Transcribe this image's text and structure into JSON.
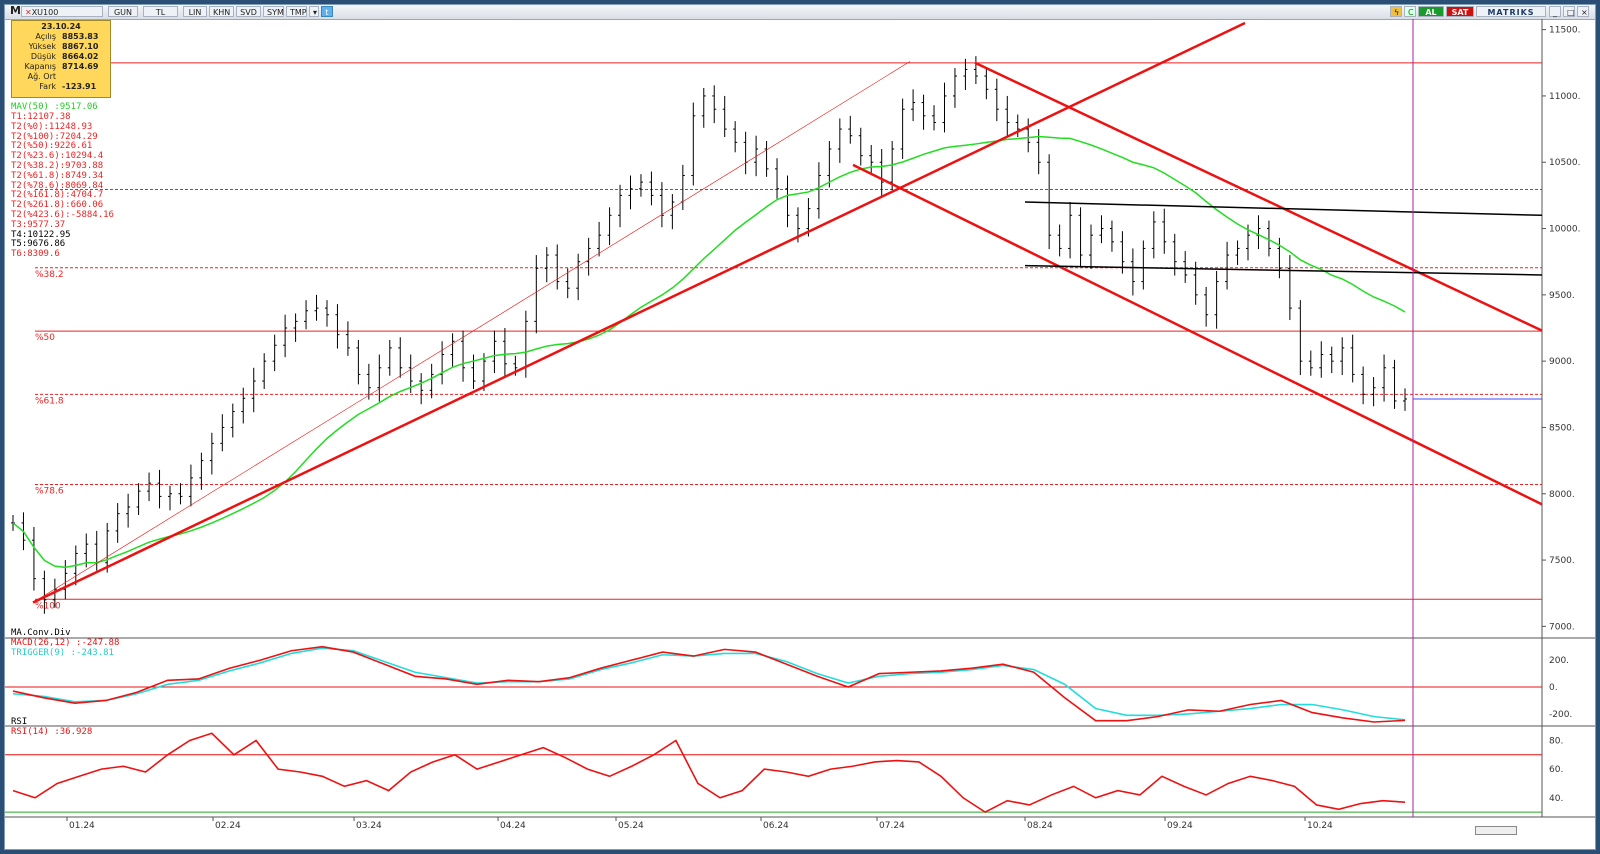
{
  "toolbar": {
    "logo": "M",
    "symbol": "XU100",
    "buttons": [
      "GUN",
      "TL",
      "LIN",
      "KHN",
      "SVD",
      "SYM",
      "TMP"
    ],
    "al": "AL",
    "sat": "SAT",
    "brand": "MATRIKS"
  },
  "ohlc": {
    "date": "23.10.24",
    "rows": [
      {
        "label": "Açılış",
        "value": "8853.83"
      },
      {
        "label": "Yüksek",
        "value": "8867.10"
      },
      {
        "label": "Düşük",
        "value": "8664.02"
      },
      {
        "label": "Kapanış",
        "value": "8714.69"
      },
      {
        "label": "Ağ. Ort",
        "value": ""
      },
      {
        "label": "Fark",
        "value": "-123.91"
      }
    ]
  },
  "price_indicators": {
    "mav": "MAV(50)         :9517.06",
    "levels": [
      "T1:12107.38",
      "T2(%0):11248.93",
      "T2(%100):7204.29",
      "T2(%50):9226.61",
      "T2(%23.6):10294.4",
      "T2(%38.2):9703.88",
      "T2(%61.8):8749.34",
      "T2(%78.6):8069.84",
      "T2(%161.8):4704.7",
      "T2(%261.8):660.06",
      "T2(%423.6):-5884.16",
      "T3:9577.37"
    ],
    "t4": "T4:10122.95",
    "t5": "T5:9676.86",
    "t6": "T6:8309.6"
  },
  "macd_labels": {
    "title": "MA.Conv.Div",
    "macd": "MACD(26,12)   :-247.88",
    "trigger": "TRIGGER(9)    :-243.81"
  },
  "rsi_labels": {
    "title": "RSI",
    "rsi": "RSI(14)      :36.928"
  },
  "colors": {
    "price": "#000000",
    "ma": "#22dd22",
    "trend": "#ee1111",
    "fib": "#ee2222",
    "macd": "#ee1111",
    "trigger": "#22dddd",
    "rsi": "#ee1111",
    "cursor": "#aa22aa"
  },
  "chart_data": [
    {
      "type": "ohlc",
      "symbol": "XU100",
      "x_ticks": [
        "01.24",
        "02.24",
        "03.24",
        "04.24",
        "05.24",
        "06.24",
        "07.24",
        "08.24",
        "09.24",
        "10.24"
      ],
      "y_ticks": [
        11500,
        11000,
        10500,
        10000,
        9500,
        9000,
        8500,
        8000,
        7500,
        7000
      ],
      "ylim": [
        6950,
        11550
      ],
      "fib_labels": [
        {
          "label": "%38.2",
          "value": 9703.88
        },
        {
          "label": "%50",
          "value": 9226.61
        },
        {
          "label": "%61.8",
          "value": 8749.34
        },
        {
          "label": "%78.6",
          "value": 8069.84
        },
        {
          "label": "%100",
          "value": 7204.29
        }
      ],
      "horizontal_lines": [
        11248.93,
        10294.4,
        9703.88,
        9226.61,
        8749.34,
        8069.84,
        7204.29
      ],
      "close_path": [
        7780,
        7650,
        7360,
        7200,
        7280,
        7400,
        7550,
        7620,
        7480,
        7720,
        7850,
        7900,
        8020,
        8080,
        7980,
        8000,
        7980,
        8120,
        8250,
        8380,
        8500,
        8620,
        8720,
        8850,
        9000,
        9120,
        9250,
        9300,
        9380,
        9400,
        9350,
        9200,
        9100,
        8900,
        8800,
        8950,
        9100,
        8950,
        8850,
        8780,
        8900,
        9050,
        9150,
        8950,
        8850,
        9000,
        9150,
        8980,
        8950,
        9300,
        9700,
        9800,
        9600,
        9550,
        9750,
        9850,
        9950,
        10100,
        10250,
        10300,
        10350,
        10250,
        10100,
        10200,
        10400,
        10850,
        11000,
        10900,
        10750,
        10650,
        10500,
        10600,
        10450,
        10300,
        10100,
        10000,
        10150,
        10400,
        10600,
        10750,
        10700,
        10550,
        10500,
        10350,
        10600,
        10900,
        10950,
        10850,
        10800,
        11000,
        11150,
        11200,
        11150,
        11050,
        10900,
        10800,
        10750,
        10650,
        10500,
        9950,
        9850,
        10100,
        9800,
        9950,
        10000,
        9900,
        9750,
        9600,
        9850,
        10050,
        9900,
        9750,
        9650,
        9500,
        9350,
        9600,
        9800,
        9850,
        9950,
        10000,
        9850,
        9700,
        9400,
        9000,
        8950,
        9050,
        9000,
        9100,
        8900,
        8750,
        8800,
        8950,
        8700,
        8714.69
      ],
      "moving_average": {
        "name": "MAV(50)",
        "last": 9517.06
      },
      "current": {
        "open": 8853.83,
        "high": 8867.1,
        "low": 8664.02,
        "close": 8714.69,
        "change": -123.91
      }
    },
    {
      "type": "line",
      "title": "MA.Conv.Div",
      "y_ticks": [
        200,
        0,
        -200
      ],
      "series": [
        {
          "name": "MACD(26,12)",
          "last": -247.88
        },
        {
          "name": "TRIGGER(9)",
          "last": -243.81
        }
      ],
      "macd_path": [
        -30,
        -80,
        -120,
        -100,
        -40,
        50,
        60,
        140,
        200,
        270,
        300,
        260,
        170,
        80,
        60,
        20,
        50,
        40,
        70,
        140,
        200,
        260,
        230,
        280,
        260,
        170,
        80,
        0,
        100,
        110,
        120,
        140,
        170,
        110,
        -80,
        -250,
        -250,
        -220,
        -170,
        -180,
        -130,
        -100,
        -190,
        -230,
        -260,
        -247.88
      ],
      "trigger_path": [
        -50,
        -70,
        -110,
        -100,
        -50,
        20,
        50,
        120,
        180,
        250,
        290,
        270,
        190,
        110,
        70,
        30,
        40,
        40,
        60,
        130,
        180,
        240,
        230,
        250,
        250,
        190,
        100,
        30,
        80,
        100,
        110,
        130,
        160,
        130,
        20,
        -160,
        -210,
        -210,
        -200,
        -180,
        -160,
        -130,
        -130,
        -170,
        -220,
        -243.81
      ]
    },
    {
      "type": "line",
      "title": "RSI",
      "y_ticks": [
        80,
        60,
        40
      ],
      "series": [
        {
          "name": "RSI(14)",
          "last": 36.928
        }
      ],
      "rsi_path": [
        45,
        40,
        50,
        55,
        60,
        62,
        58,
        70,
        80,
        85,
        70,
        80,
        60,
        58,
        55,
        48,
        52,
        45,
        58,
        65,
        70,
        60,
        65,
        70,
        75,
        68,
        60,
        55,
        62,
        70,
        80,
        50,
        40,
        45,
        60,
        58,
        55,
        60,
        62,
        65,
        66,
        65,
        55,
        40,
        30,
        38,
        35,
        42,
        48,
        40,
        45,
        42,
        55,
        48,
        42,
        50,
        55,
        52,
        48,
        35,
        32,
        36,
        38,
        36.928
      ],
      "reference_lines": [
        70,
        30
      ]
    }
  ]
}
